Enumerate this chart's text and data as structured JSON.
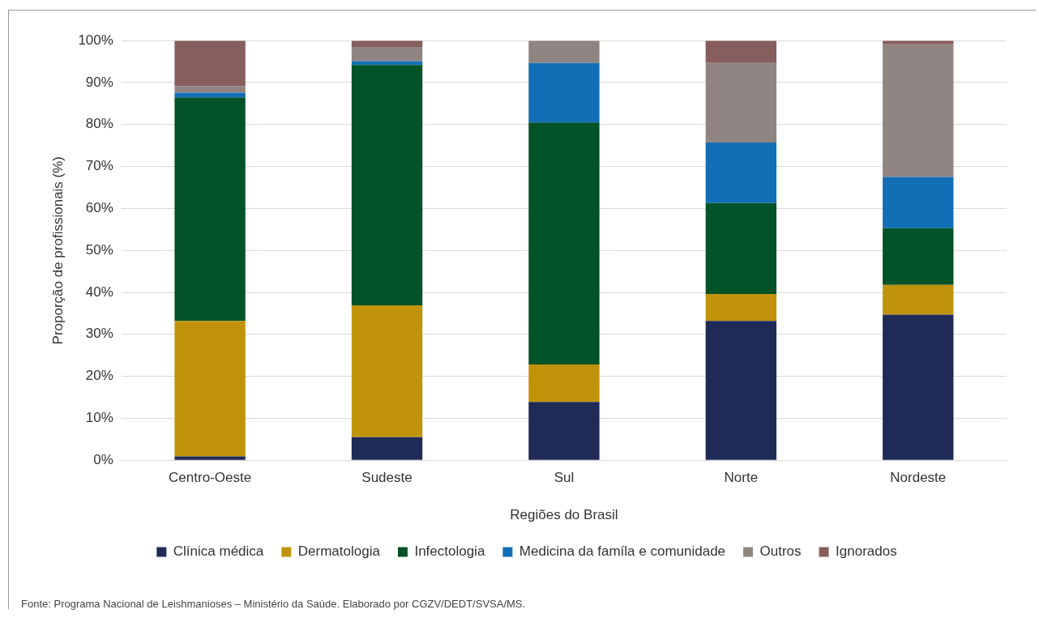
{
  "chart_data": {
    "type": "bar",
    "stacked": true,
    "xlabel": "Regiões do Brasil",
    "ylabel": "Proporção de profissionais (%)",
    "categories": [
      "Centro-Oeste",
      "Sudeste",
      "Sul",
      "Norte",
      "Nordeste"
    ],
    "series": [
      {
        "name": "Clínica médica",
        "color": "#202a56",
        "values": [
          0.9,
          5.5,
          13.9,
          33.2,
          34.7
        ]
      },
      {
        "name": "Dermatologia",
        "color": "#c1930b",
        "values": [
          32.3,
          31.4,
          8.9,
          6.4,
          7.1
        ]
      },
      {
        "name": "Infectologia",
        "color": "#035328",
        "values": [
          53.3,
          57.3,
          57.7,
          21.7,
          13.5
        ]
      },
      {
        "name": "Medicina da famíla e comunidade",
        "color": "#126fb6",
        "values": [
          1.1,
          0.9,
          14.2,
          14.4,
          12.2
        ]
      },
      {
        "name": "Outros",
        "color": "#908483",
        "values": [
          1.6,
          3.4,
          5.3,
          19.0,
          31.6
        ]
      },
      {
        "name": "Ignorados",
        "color": "#875e5d",
        "values": [
          10.8,
          1.5,
          0,
          5.3,
          0.9
        ]
      }
    ],
    "ylim": [
      0,
      100
    ],
    "yticks": [
      {
        "value": 0,
        "label": "0%"
      },
      {
        "value": 10,
        "label": "10%"
      },
      {
        "value": 20,
        "label": "20%"
      },
      {
        "value": 30,
        "label": "30%"
      },
      {
        "value": 40,
        "label": "40%"
      },
      {
        "value": 50,
        "label": "50%"
      },
      {
        "value": 60,
        "label": "60%"
      },
      {
        "value": 70,
        "label": "70%"
      },
      {
        "value": 80,
        "label": "80%"
      },
      {
        "value": 90,
        "label": "90%"
      },
      {
        "value": 100,
        "label": "100%"
      }
    ],
    "grid": "y",
    "legend": "bottom",
    "annotations": [
      "Fonte: Programa Nacional de Leishmanioses – Ministério da Saúde. Elaborado por CGZV/DEDT/SVSA/MS."
    ]
  }
}
